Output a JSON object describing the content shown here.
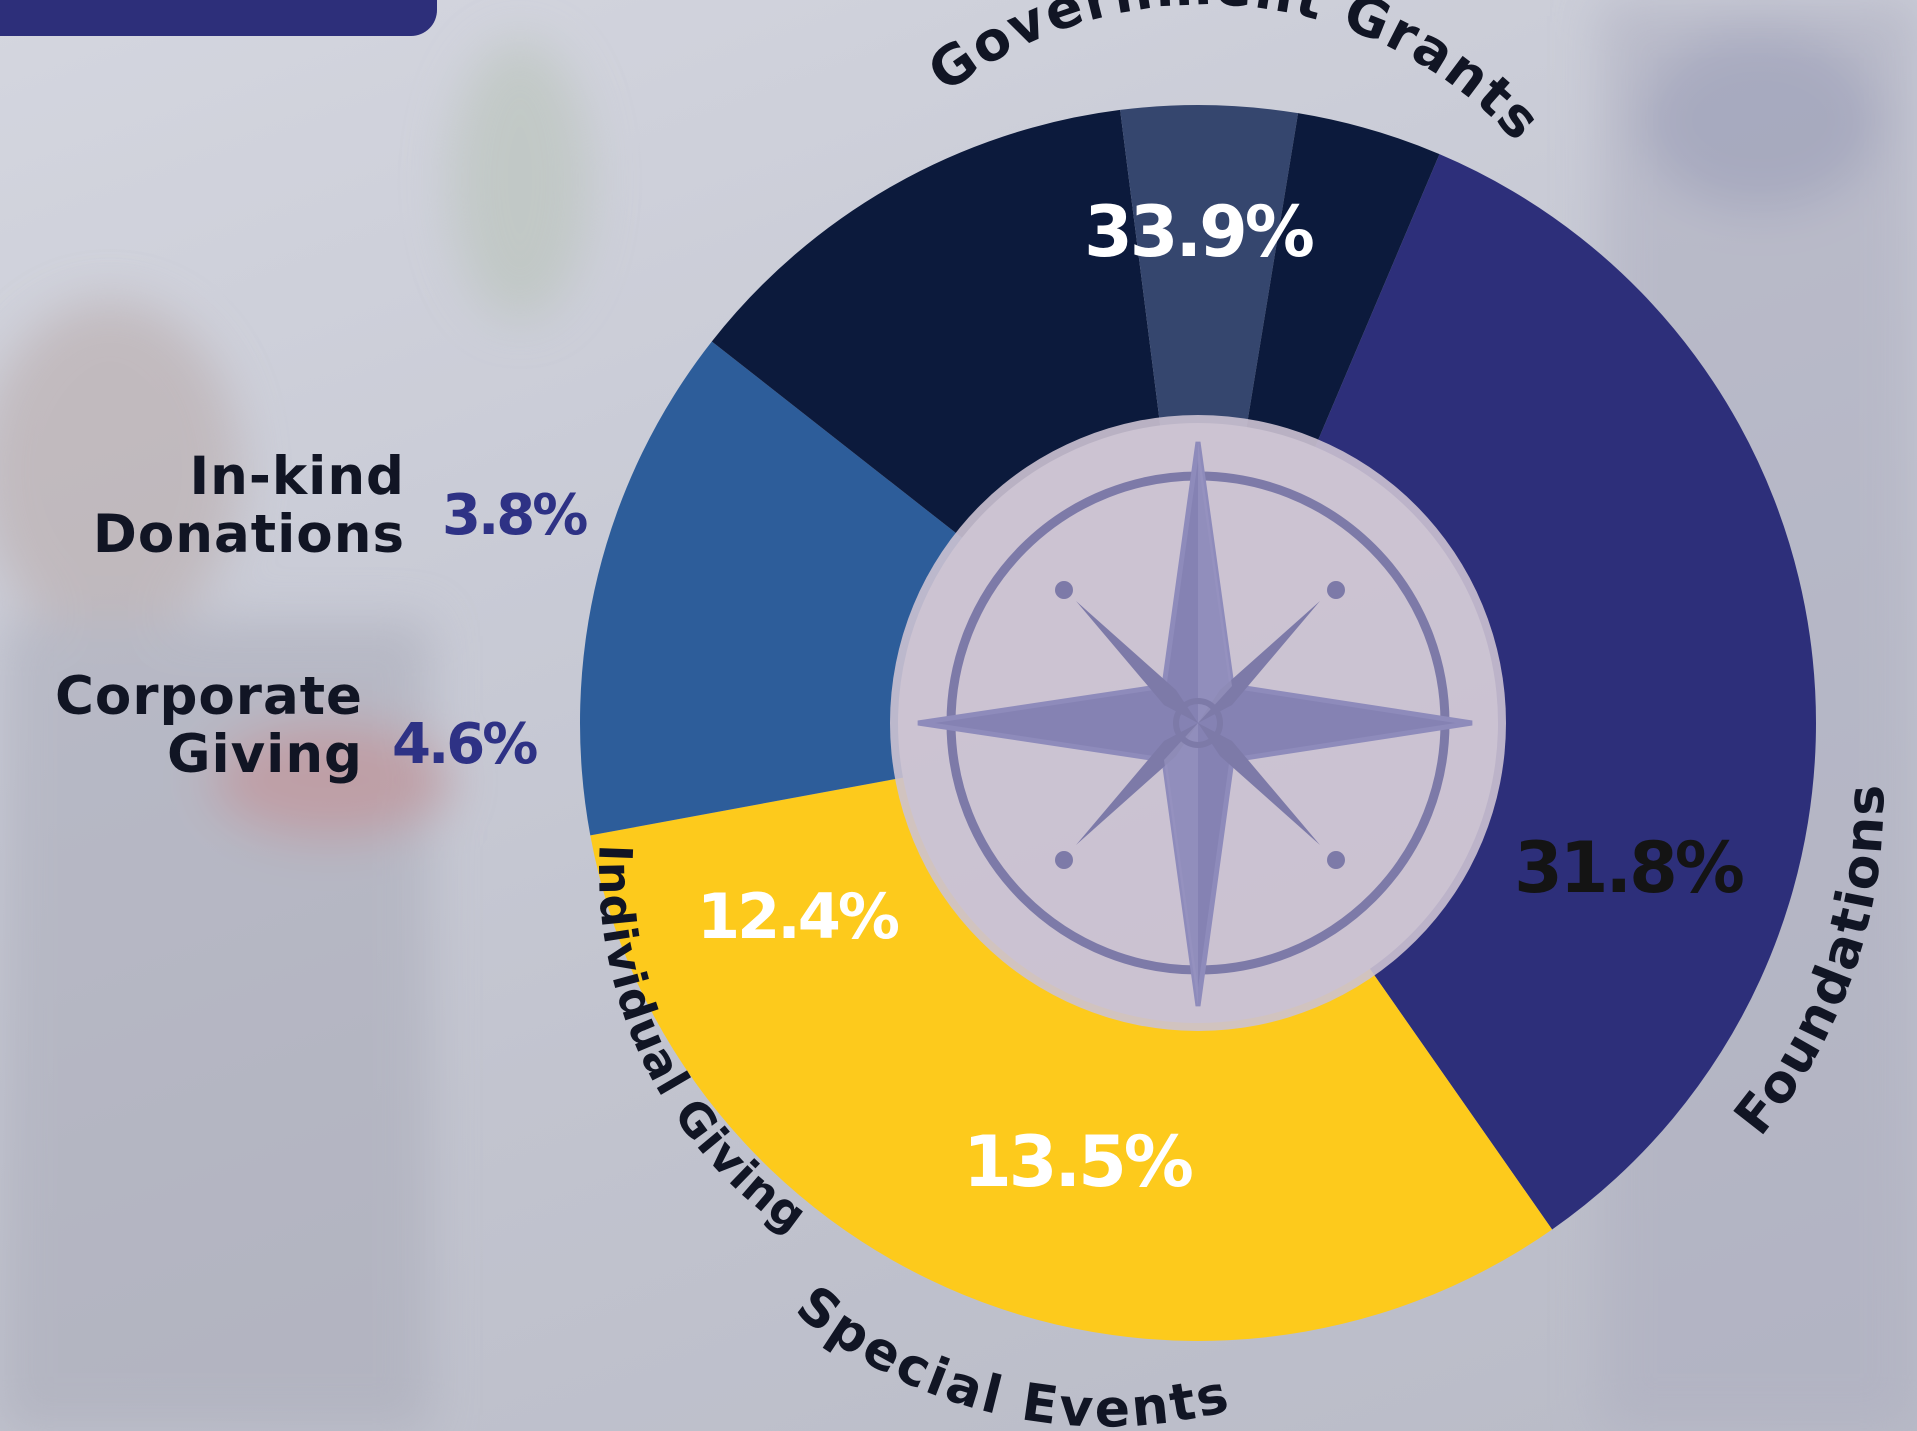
{
  "chart_data": {
    "type": "pie",
    "variant": "donut",
    "title": "",
    "start_angle_deg": 67,
    "slices": [
      {
        "label": "Government Grants",
        "value": 33.9,
        "value_label": "33.9%",
        "color": "#2d2f7a",
        "text_color": "#ffffff"
      },
      {
        "label": "Foundations",
        "value": 31.8,
        "value_label": "31.8%",
        "color": "#fdca1c",
        "text_color": "#141414"
      },
      {
        "label": "Special Events",
        "value": 13.5,
        "value_label": "13.5%",
        "color": "#2d5d9a",
        "text_color": "#ffffff"
      },
      {
        "label": "Individual Giving",
        "value": 12.4,
        "value_label": "12.4%",
        "color": "#0c1a3c",
        "text_color": "#ffffff"
      },
      {
        "label": "Corporate Giving",
        "value": 4.6,
        "value_label": "4.6%",
        "color": "#35466e",
        "text_color": "#2e3285"
      },
      {
        "label": "In-kind Donations",
        "value": 3.8,
        "value_label": "3.8%",
        "color": "#0c1a3c",
        "text_color": "#2e3285"
      }
    ]
  },
  "side_labels": {
    "in_kind": {
      "line1": "In-kind",
      "line2": "Donations"
    },
    "corporate": {
      "line1": "Corporate",
      "line2": "Giving"
    }
  },
  "colors": {
    "accent_navy": "#2d2f7a",
    "gold": "#fdca1c",
    "compass": "#7d7aa8"
  },
  "icons": {
    "center": "compass-rose-icon"
  }
}
